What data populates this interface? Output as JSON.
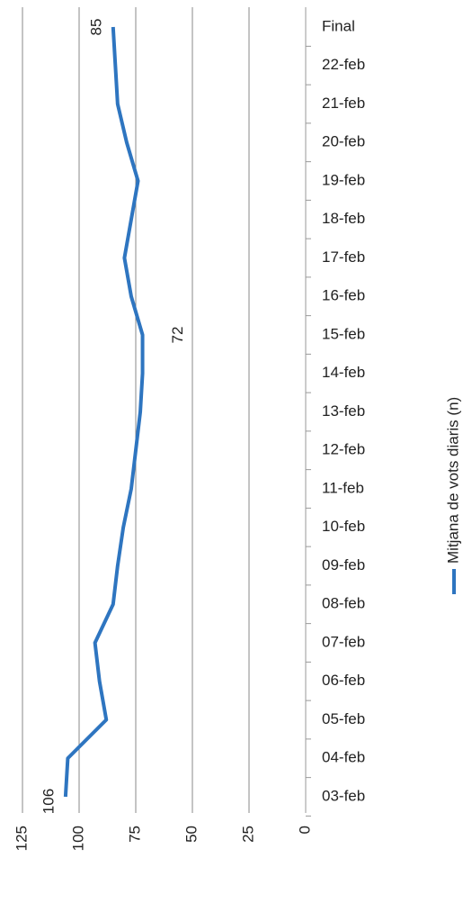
{
  "chart_data": {
    "type": "line",
    "categories": [
      "03-feb",
      "04-feb",
      "05-feb",
      "06-feb",
      "07-feb",
      "08-feb",
      "09-feb",
      "10-feb",
      "11-feb",
      "12-feb",
      "13-feb",
      "14-feb",
      "15-feb",
      "16-feb",
      "17-feb",
      "18-feb",
      "19-feb",
      "20-feb",
      "21-feb",
      "22-feb",
      "Final"
    ],
    "series": [
      {
        "name": "Mitjana de vots diaris (n)",
        "color": "#2e75c0",
        "values": [
          106,
          105,
          88,
          91,
          93,
          85,
          83,
          80.5,
          77,
          75,
          73,
          72,
          72,
          77,
          80,
          77,
          74,
          79,
          83,
          84,
          85
        ],
        "value_labels": [
          "106",
          null,
          null,
          null,
          null,
          null,
          null,
          null,
          null,
          null,
          null,
          null,
          "72",
          null,
          null,
          null,
          null,
          null,
          null,
          null,
          "85"
        ]
      }
    ],
    "ylim": [
      0,
      125
    ],
    "yticks": [
      0,
      25,
      50,
      75,
      100,
      125
    ],
    "grid": true,
    "legend": "bottom"
  }
}
